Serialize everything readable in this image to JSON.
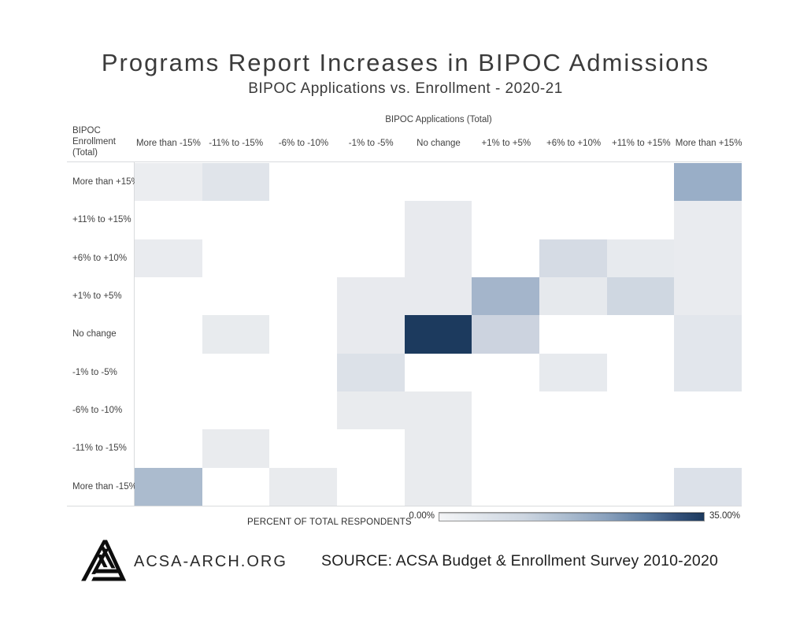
{
  "header": {
    "title": "Programs Report Increases in BIPOC Admissions",
    "subtitle": "BIPOC Applications vs. Enrollment - 2020-21"
  },
  "chart_data": {
    "type": "heatmap",
    "title": "Programs Report Increases in BIPOC Admissions",
    "subtitle": "BIPOC Applications vs. Enrollment - 2020-21",
    "x_axis_label": "BIPOC Applications (Total)",
    "y_axis_label": "BIPOC Enrollment (Total)",
    "x_categories": [
      "More than -15%",
      "-11% to -15%",
      "-6% to -10%",
      "-1% to -5%",
      "No change",
      "+1% to +5%",
      "+6% to +10%",
      "+11% to +15%",
      "More than +15%"
    ],
    "y_categories": [
      "More than +15%",
      "+11% to +15%",
      "+6% to +10%",
      "+1% to +5%",
      "No change",
      "-1% to -5%",
      "-6% to -10%",
      "-11% to -15%",
      "More than -15%"
    ],
    "value_unit": "percent of total respondents",
    "color_scale": {
      "min": 0,
      "max": 35,
      "min_color": "#f4f5f7",
      "max_color": "#1c3a5e"
    },
    "legend": {
      "label": "PERCENT OF TOTAL RESPONDENTS",
      "min_label": "0.00%",
      "max_label": "35.00%",
      "position": "bottom"
    },
    "grid": false,
    "cells": [
      {
        "y": "More than +15%",
        "x": "More than -15%",
        "color": "#ebedf0",
        "value_pct_est": 1.5
      },
      {
        "y": "More than +15%",
        "x": "-11% to -15%",
        "color": "#e0e4ea",
        "value_pct_est": 3
      },
      {
        "y": "More than +15%",
        "x": "More than +15%",
        "color": "#99aec7",
        "value_pct_est": 13.5
      },
      {
        "y": "+11% to +15%",
        "x": "No change",
        "color": "#e8eaee",
        "value_pct_est": 2
      },
      {
        "y": "+11% to +15%",
        "x": "More than +15%",
        "color": "#e9ebef",
        "value_pct_est": 2
      },
      {
        "y": "+6% to +10%",
        "x": "More than -15%",
        "color": "#e9ebef",
        "value_pct_est": 2
      },
      {
        "y": "+6% to +10%",
        "x": "No change",
        "color": "#e8eaee",
        "value_pct_est": 2
      },
      {
        "y": "+6% to +10%",
        "x": "+6% to +10%",
        "color": "#d5dbe4",
        "value_pct_est": 5
      },
      {
        "y": "+6% to +10%",
        "x": "+11% to +15%",
        "color": "#e7eaee",
        "value_pct_est": 2
      },
      {
        "y": "+6% to +10%",
        "x": "More than +15%",
        "color": "#e9ebef",
        "value_pct_est": 2
      },
      {
        "y": "+1% to +5%",
        "x": "-1% to -5%",
        "color": "#e8eaee",
        "value_pct_est": 2
      },
      {
        "y": "+1% to +5%",
        "x": "No change",
        "color": "#e8eaee",
        "value_pct_est": 2
      },
      {
        "y": "+1% to +5%",
        "x": "+1% to +5%",
        "color": "#a4b5cb",
        "value_pct_est": 12.5
      },
      {
        "y": "+1% to +5%",
        "x": "+6% to +10%",
        "color": "#e6e9ed",
        "value_pct_est": 2
      },
      {
        "y": "+1% to +5%",
        "x": "+11% to +15%",
        "color": "#cfd7e1",
        "value_pct_est": 5.5
      },
      {
        "y": "+1% to +5%",
        "x": "More than +15%",
        "color": "#e9ebef",
        "value_pct_est": 2
      },
      {
        "y": "No change",
        "x": "-11% to -15%",
        "color": "#e8ebee",
        "value_pct_est": 2
      },
      {
        "y": "No change",
        "x": "-1% to -5%",
        "color": "#e8eaee",
        "value_pct_est": 2
      },
      {
        "y": "No change",
        "x": "No change",
        "color": "#1c3a5e",
        "value_pct_est": 34
      },
      {
        "y": "No change",
        "x": "+1% to +5%",
        "color": "#ccd3df",
        "value_pct_est": 6.5
      },
      {
        "y": "No change",
        "x": "More than +15%",
        "color": "#e2e6ec",
        "value_pct_est": 3
      },
      {
        "y": "-1% to -5%",
        "x": "-1% to -5%",
        "color": "#dce1e8",
        "value_pct_est": 4
      },
      {
        "y": "-1% to -5%",
        "x": "+6% to +10%",
        "color": "#e7eaee",
        "value_pct_est": 2
      },
      {
        "y": "-1% to -5%",
        "x": "More than +15%",
        "color": "#e2e6ec",
        "value_pct_est": 3
      },
      {
        "y": "-6% to -10%",
        "x": "-1% to -5%",
        "color": "#e9ebee",
        "value_pct_est": 2
      },
      {
        "y": "-6% to -10%",
        "x": "No change",
        "color": "#e9ebee",
        "value_pct_est": 2
      },
      {
        "y": "-11% to -15%",
        "x": "-11% to -15%",
        "color": "#e9ebee",
        "value_pct_est": 2
      },
      {
        "y": "-11% to -15%",
        "x": "No change",
        "color": "#e9ebee",
        "value_pct_est": 2
      },
      {
        "y": "More than -15%",
        "x": "More than -15%",
        "color": "#abbbce",
        "value_pct_est": 11
      },
      {
        "y": "More than -15%",
        "x": "-6% to -10%",
        "color": "#e9ebee",
        "value_pct_est": 2
      },
      {
        "y": "More than -15%",
        "x": "No change",
        "color": "#e9ebee",
        "value_pct_est": 2
      },
      {
        "y": "More than -15%",
        "x": "More than +15%",
        "color": "#dce1e9",
        "value_pct_est": 4
      }
    ]
  },
  "footer": {
    "org": "ACSA-ARCH.ORG",
    "source": "SOURCE: ACSA Budget & Enrollment Survey 2010-2020",
    "logo": "acsa-triangle-logo"
  }
}
